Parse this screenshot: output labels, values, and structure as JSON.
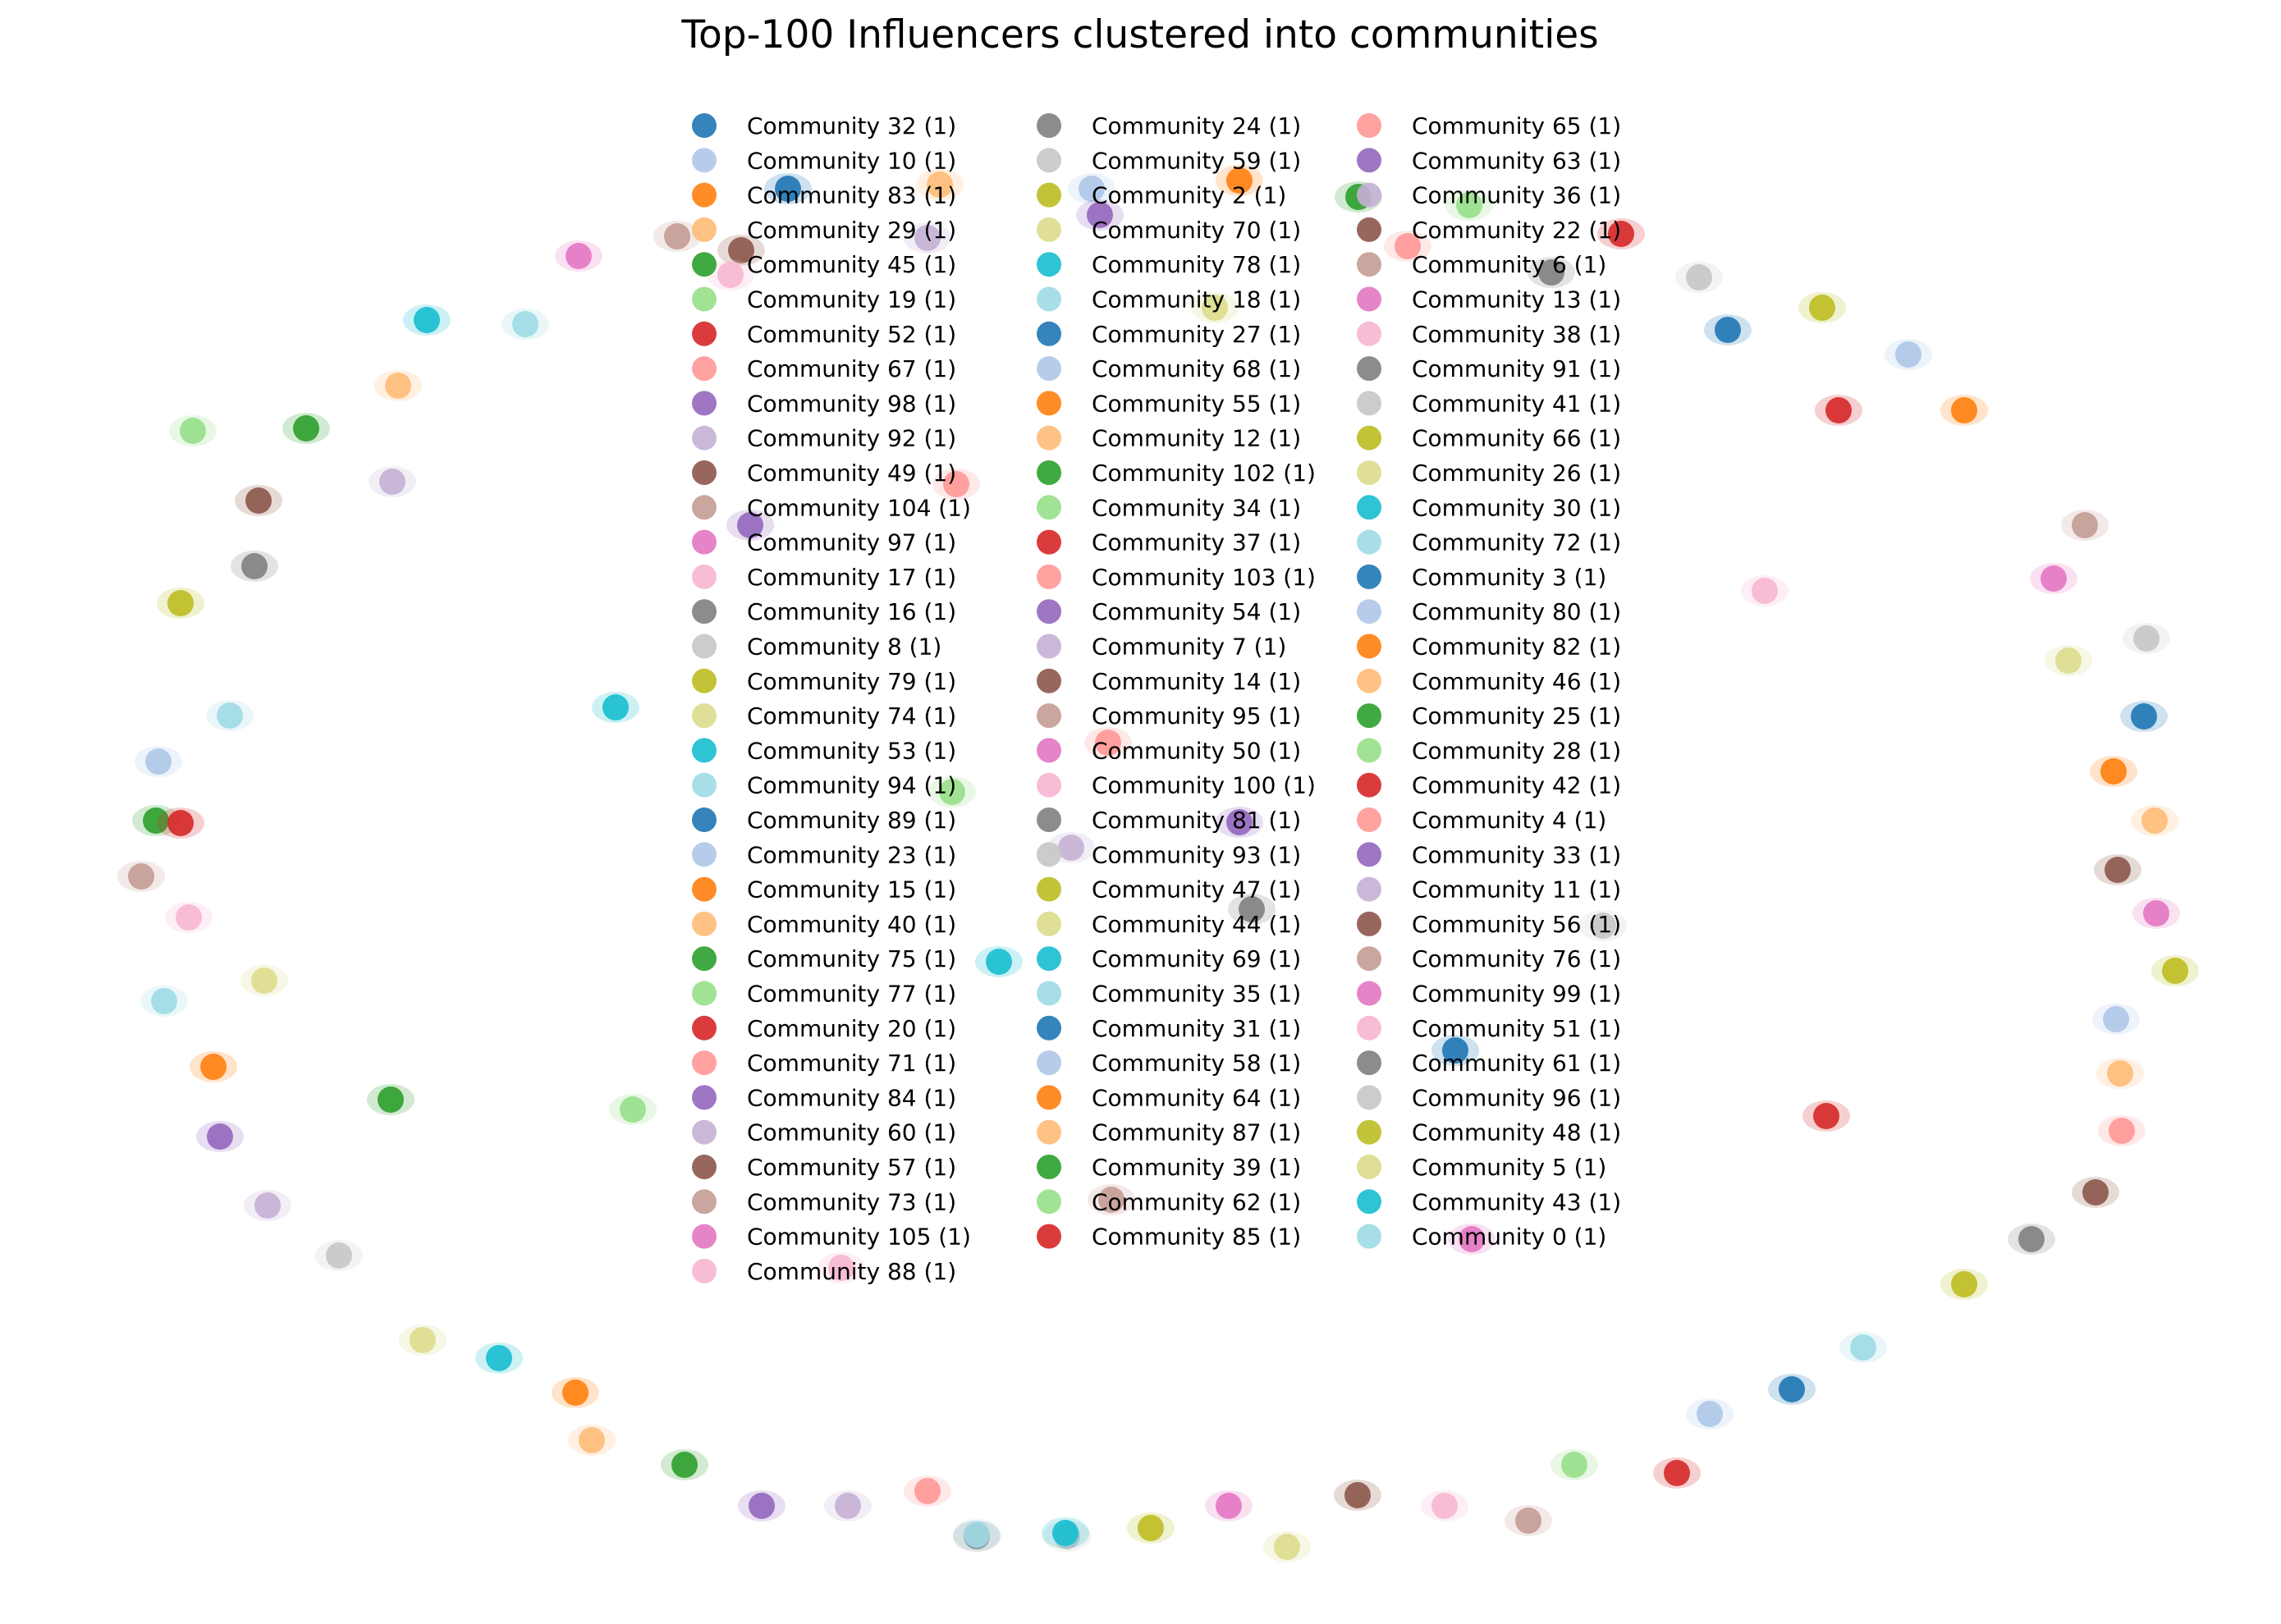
{
  "title": "Top-100 Influencers clustered into communities",
  "palette": [
    "#1f77b4",
    "#aec7e8",
    "#ff7f0e",
    "#ffbb78",
    "#2ca02c",
    "#98df8a",
    "#d62728",
    "#ff9896",
    "#9467bd",
    "#c5b0d5",
    "#8c564b",
    "#c49c94",
    "#e377c2",
    "#f7b6d2",
    "#7f7f7f",
    "#c7c7c7",
    "#bcbd22",
    "#dbdb8d",
    "#17becf",
    "#9edae5"
  ],
  "legend": {
    "columns": [
      [
        "Community 32 (1)",
        "Community 10 (1)",
        "Community 83 (1)",
        "Community 29 (1)",
        "Community 45 (1)",
        "Community 19 (1)",
        "Community 52 (1)",
        "Community 67 (1)",
        "Community 98 (1)",
        "Community 92 (1)",
        "Community 49 (1)",
        "Community 104 (1)",
        "Community 97 (1)",
        "Community 17 (1)",
        "Community 16 (1)",
        "Community 8 (1)",
        "Community 79 (1)",
        "Community 74 (1)",
        "Community 53 (1)",
        "Community 94 (1)",
        "Community 89 (1)",
        "Community 23 (1)",
        "Community 15 (1)",
        "Community 40 (1)",
        "Community 75 (1)",
        "Community 77 (1)",
        "Community 20 (1)",
        "Community 71 (1)",
        "Community 84 (1)",
        "Community 60 (1)",
        "Community 57 (1)",
        "Community 73 (1)",
        "Community 105 (1)",
        "Community 88 (1)"
      ],
      [
        "Community 24 (1)",
        "Community 59 (1)",
        "Community 2 (1)",
        "Community 70 (1)",
        "Community 78 (1)",
        "Community 18 (1)",
        "Community 27 (1)",
        "Community 68 (1)",
        "Community 55 (1)",
        "Community 12 (1)",
        "Community 102 (1)",
        "Community 34 (1)",
        "Community 37 (1)",
        "Community 103 (1)",
        "Community 54 (1)",
        "Community 7 (1)",
        "Community 14 (1)",
        "Community 95 (1)",
        "Community 50 (1)",
        "Community 100 (1)",
        "Community 81 (1)",
        "Community 93 (1)",
        "Community 47 (1)",
        "Community 44 (1)",
        "Community 69 (1)",
        "Community 35 (1)",
        "Community 31 (1)",
        "Community 58 (1)",
        "Community 64 (1)",
        "Community 87 (1)",
        "Community 39 (1)",
        "Community 62 (1)",
        "Community 85 (1)"
      ],
      [
        "Community 65 (1)",
        "Community 63 (1)",
        "Community 36 (1)",
        "Community 22 (1)",
        "Community 6 (1)",
        "Community 13 (1)",
        "Community 38 (1)",
        "Community 91 (1)",
        "Community 41 (1)",
        "Community 66 (1)",
        "Community 26 (1)",
        "Community 30 (1)",
        "Community 72 (1)",
        "Community 3 (1)",
        "Community 80 (1)",
        "Community 82 (1)",
        "Community 46 (1)",
        "Community 25 (1)",
        "Community 28 (1)",
        "Community 42 (1)",
        "Community 4 (1)",
        "Community 33 (1)",
        "Community 11 (1)",
        "Community 56 (1)",
        "Community 76 (1)",
        "Community 99 (1)",
        "Community 51 (1)",
        "Community 61 (1)",
        "Community 96 (1)",
        "Community 48 (1)",
        "Community 5 (1)",
        "Community 43 (1)",
        "Community 0 (1)"
      ]
    ]
  }
}
